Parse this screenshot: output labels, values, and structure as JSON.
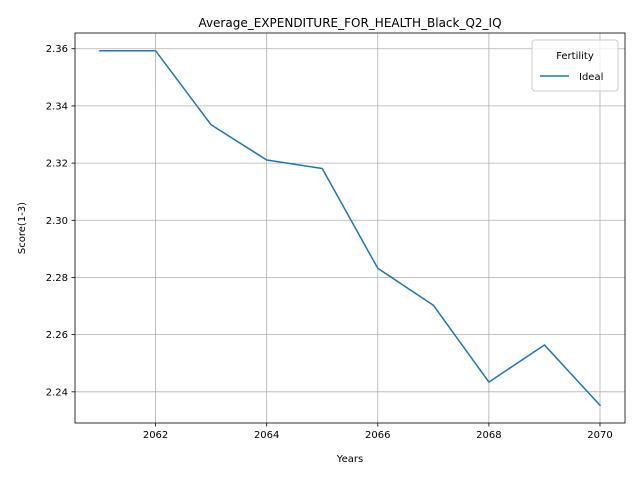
{
  "chart_data": {
    "type": "line",
    "title": "Average_EXPENDITURE_FOR_HEALTH_Black_Q2_IQ",
    "xlabel": "Years",
    "ylabel": "Score(1-3)",
    "x": [
      2061,
      2062,
      2063,
      2064,
      2065,
      2066,
      2067,
      2068,
      2069,
      2070
    ],
    "series": [
      {
        "name": "Ideal",
        "color": "#1f77b4",
        "values": [
          2.3593,
          2.3593,
          2.3334,
          2.3211,
          2.3181,
          2.2832,
          2.2703,
          2.2434,
          2.2564,
          2.2353
        ]
      }
    ],
    "xlim": [
      2060.55,
      2070.45
    ],
    "ylim": [
      2.2291,
      2.3655
    ],
    "xticks": [
      2062,
      2064,
      2066,
      2068,
      2070
    ],
    "yticks": [
      2.24,
      2.26,
      2.28,
      2.3,
      2.32,
      2.34,
      2.36
    ],
    "xtick_labels": [
      "2062",
      "2064",
      "2066",
      "2068",
      "2070"
    ],
    "ytick_labels": [
      "2.24",
      "2.26",
      "2.28",
      "2.30",
      "2.32",
      "2.34",
      "2.36"
    ],
    "grid": true,
    "legend": {
      "title": "Fertility",
      "placement": "top-right"
    }
  }
}
